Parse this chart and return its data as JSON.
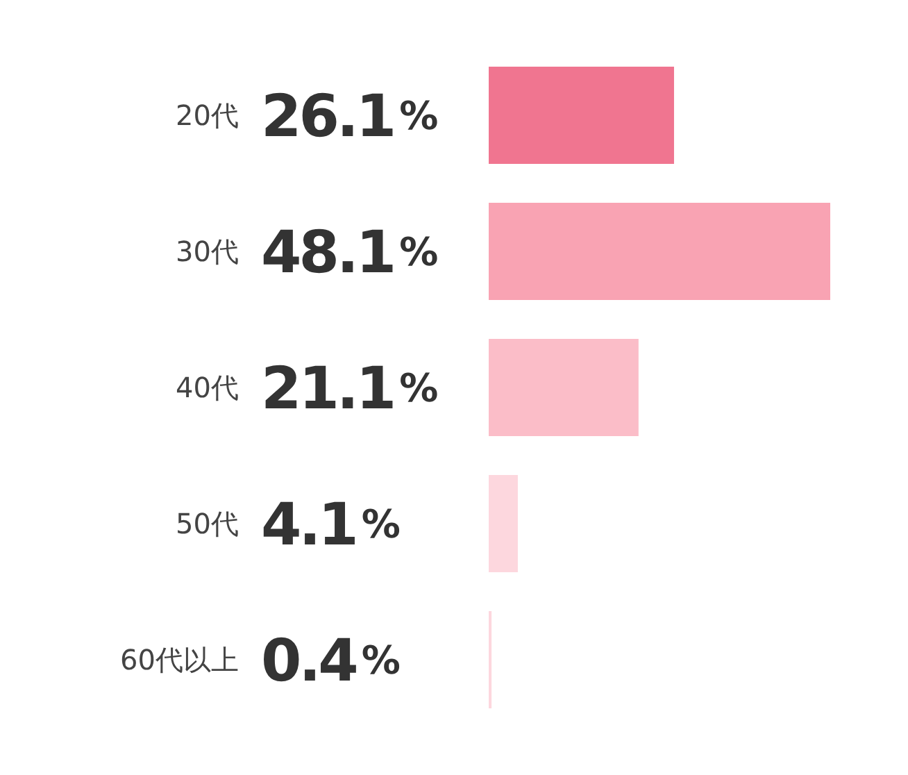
{
  "chart_data": {
    "type": "bar",
    "orientation": "horizontal",
    "categories": [
      "20代",
      "30代",
      "40代",
      "50代",
      "60代以上"
    ],
    "values": [
      26.1,
      48.1,
      21.1,
      4.1,
      0.4
    ],
    "value_labels": [
      "26.1%",
      "48.1%",
      "21.1%",
      "4.1%",
      "0.4%"
    ],
    "colors": [
      "#f07590",
      "#f9a3b3",
      "#fbbdc8",
      "#fdd7de",
      "#fdd7de"
    ],
    "grid": false,
    "legend": false
  }
}
